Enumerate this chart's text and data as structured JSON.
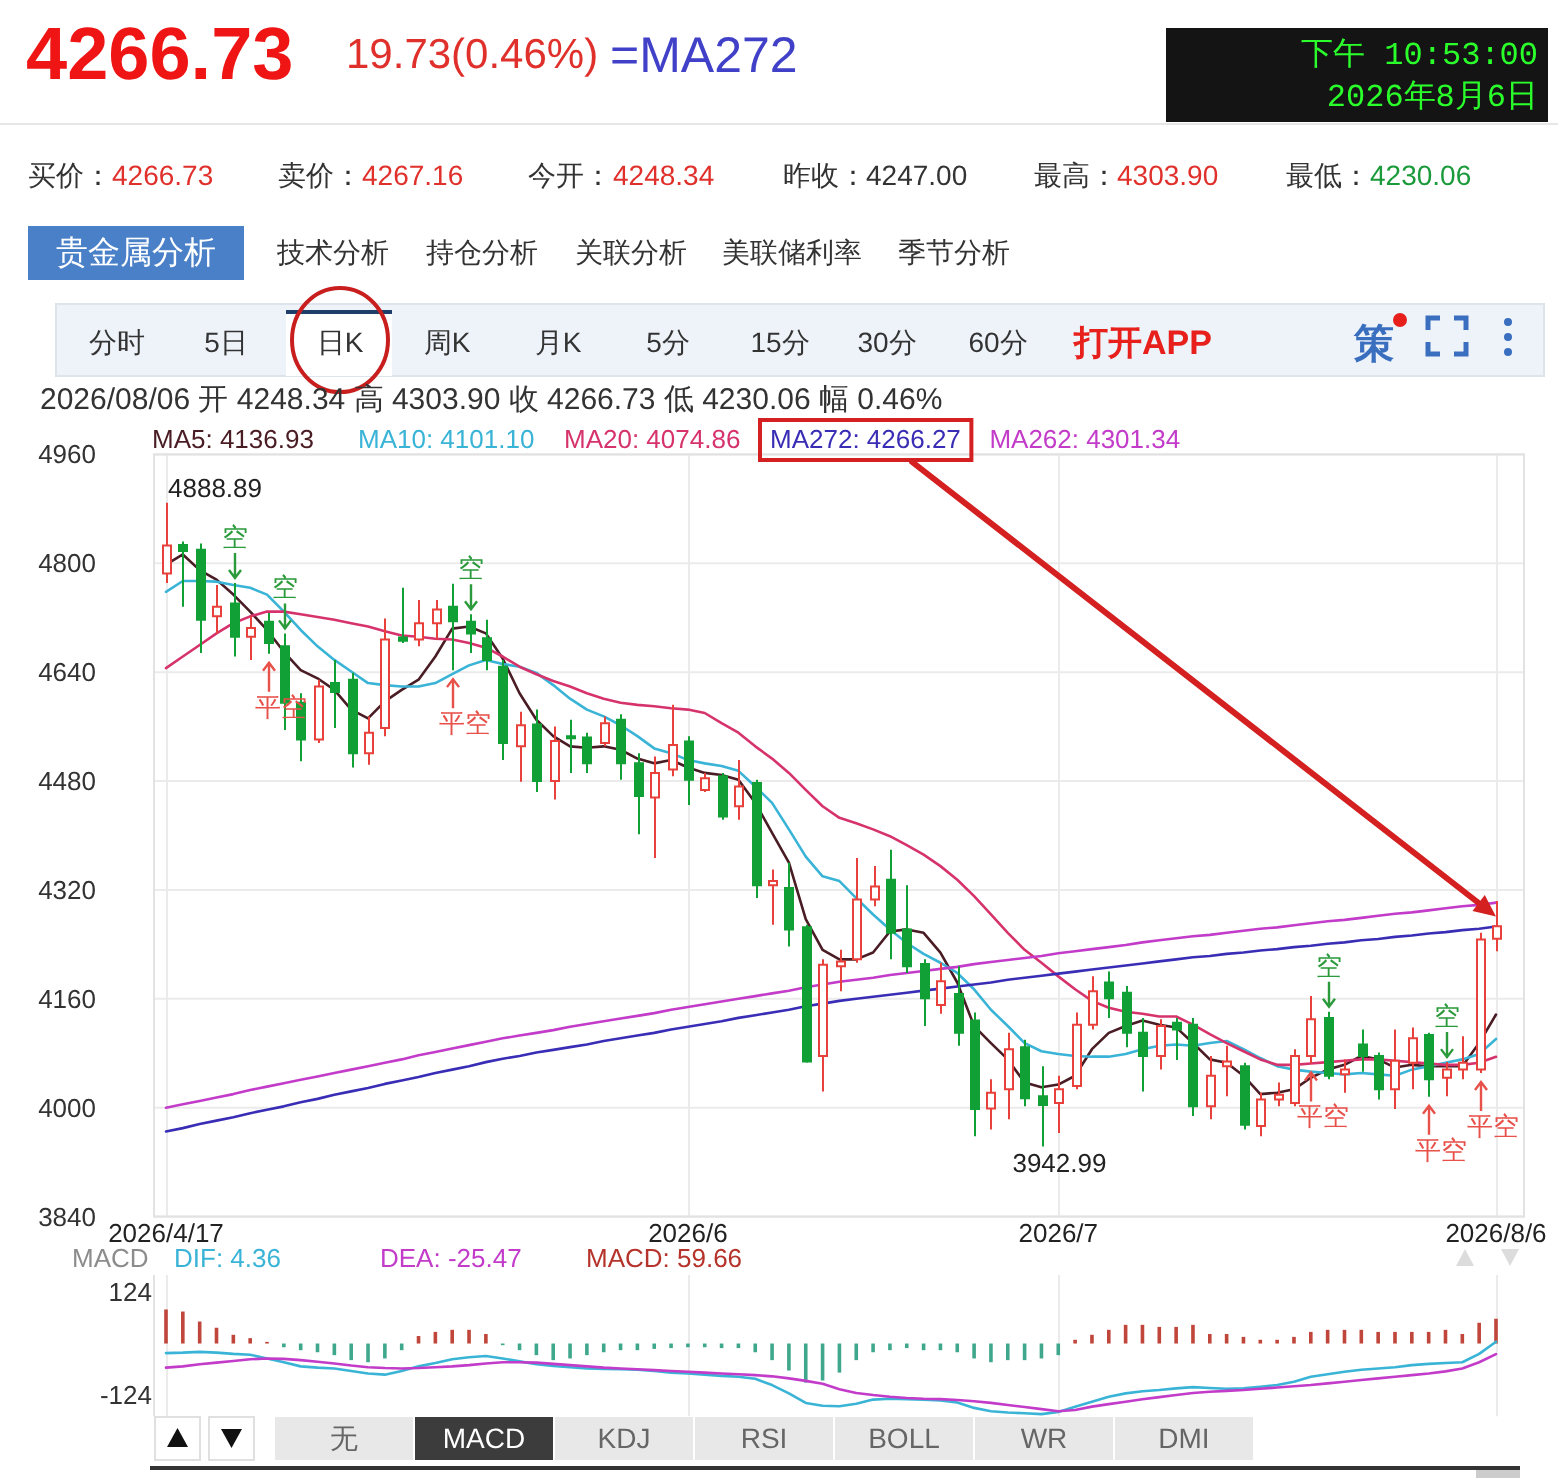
{
  "chart_data": [
    {
      "type": "other",
      "title": "4266.73",
      "annotations": [
        "19.73(0.46%)",
        "=MA272",
        "下午 10:53:00",
        "2026年8月6日",
        "买价：",
        "4266.73",
        "卖价：",
        "4267.16",
        "今开：",
        "4248.34",
        "昨收：",
        "4247.00",
        "最高：",
        "4303.90",
        "最低：",
        "4230.06",
        "贵金属分析",
        "技术分析",
        "持仓分析",
        "关联分析",
        "美联储利率",
        "季节分析",
        "分时",
        "5日",
        "日K",
        "周K",
        "月K",
        "5分",
        "15分",
        "30分",
        "60分",
        "打开APP",
        "策"
      ]
    },
    {
      "type": "candlestick",
      "subtitle": "2026/08/06 开 4248.34 高 4303.90 收 4266.73 低 4230.06 幅 0.46%",
      "categories": [
        "2026/4/17",
        null,
        null,
        null,
        null,
        null,
        null,
        null,
        null,
        null,
        null,
        null,
        null,
        null,
        null,
        null,
        null,
        null,
        null,
        null,
        null,
        null,
        null,
        null,
        null,
        null,
        null,
        null,
        null,
        null,
        null,
        "2026/6",
        null,
        null,
        null,
        null,
        null,
        null,
        null,
        null,
        null,
        null,
        null,
        null,
        null,
        null,
        null,
        null,
        null,
        null,
        null,
        null,
        null,
        "2026/7",
        null,
        null,
        null,
        null,
        null,
        null,
        null,
        null,
        null,
        null,
        null,
        null,
        null,
        null,
        null,
        null,
        null,
        null,
        null,
        null,
        null,
        null,
        null,
        null,
        null,
        "2026/8/6"
      ],
      "ohlc": [
        [
          4785,
          4888.89,
          4771,
          4826
        ],
        [
          4827,
          4832,
          4736,
          4818
        ],
        [
          4820,
          4829,
          4668,
          4717
        ],
        [
          4722,
          4768,
          4697,
          4736
        ],
        [
          4741,
          4771,
          4663,
          4692
        ],
        [
          4692,
          4722,
          4658,
          4705
        ],
        [
          4714,
          4727,
          4667,
          4683
        ],
        [
          4678,
          4697,
          4555,
          4595
        ],
        [
          4595,
          4609,
          4509,
          4541
        ],
        [
          4541,
          4629,
          4536,
          4619
        ],
        [
          4624,
          4658,
          4558,
          4611
        ],
        [
          4629,
          4639,
          4500,
          4521
        ],
        [
          4521,
          4575,
          4504,
          4551
        ],
        [
          4558,
          4719,
          4546,
          4688
        ],
        [
          4691,
          4764,
          4683,
          4686
        ],
        [
          4688,
          4746,
          4678,
          4712
        ],
        [
          4712,
          4746,
          4688,
          4732
        ],
        [
          4736,
          4770,
          4643,
          4715
        ],
        [
          4714,
          4725,
          4668,
          4697
        ],
        [
          4690,
          4717,
          4643,
          4658
        ],
        [
          4648,
          4658,
          4511,
          4536
        ],
        [
          4531,
          4582,
          4479,
          4562
        ],
        [
          4563,
          4585,
          4464,
          4480
        ],
        [
          4480,
          4560,
          4453,
          4539
        ],
        [
          4546,
          4570,
          4492,
          4544
        ],
        [
          4544,
          4551,
          4492,
          4506
        ],
        [
          4536,
          4575,
          4531,
          4565
        ],
        [
          4570,
          4578,
          4482,
          4506
        ],
        [
          4506,
          4521,
          4402,
          4458
        ],
        [
          4456,
          4516,
          4367,
          4492
        ],
        [
          4497,
          4592,
          4487,
          4533
        ],
        [
          4538,
          4546,
          4445,
          4482
        ],
        [
          4467,
          4492,
          4464,
          4484
        ],
        [
          4487,
          4492,
          4423,
          4428
        ],
        [
          4443,
          4511,
          4423,
          4472
        ],
        [
          4477,
          4482,
          4308,
          4327
        ],
        [
          4327,
          4350,
          4269,
          4333
        ],
        [
          4323,
          4360,
          4237,
          4262
        ],
        [
          4265,
          4269,
          4066,
          4068
        ],
        [
          4076,
          4218,
          4024,
          4210
        ],
        [
          4208,
          4232,
          4171,
          4215
        ],
        [
          4218,
          4367,
          4213,
          4306
        ],
        [
          4306,
          4355,
          4296,
          4325
        ],
        [
          4335,
          4379,
          4218,
          4257
        ],
        [
          4262,
          4327,
          4198,
          4208
        ],
        [
          4211,
          4218,
          4120,
          4161
        ],
        [
          4151,
          4213,
          4138,
          4186
        ],
        [
          4167,
          4208,
          4091,
          4110
        ],
        [
          4128,
          4140,
          3958,
          3998
        ],
        [
          3999,
          4042,
          3968,
          4022
        ],
        [
          4027,
          4110,
          3983,
          4086
        ],
        [
          4089,
          4100,
          4002,
          4014
        ],
        [
          4017,
          4061,
          3942.99,
          4004
        ],
        [
          4007,
          4047,
          3963,
          4027
        ],
        [
          4032,
          4140,
          4027,
          4122
        ],
        [
          4122,
          4193,
          4115,
          4171
        ],
        [
          4184,
          4200,
          4132,
          4161
        ],
        [
          4169,
          4179,
          4089,
          4110
        ],
        [
          4110,
          4132,
          4024,
          4076
        ],
        [
          4076,
          4130,
          4056,
          4120
        ],
        [
          4125,
          4132,
          4070,
          4115
        ],
        [
          4122,
          4132,
          3988,
          4002
        ],
        [
          4002,
          4076,
          3983,
          4047
        ],
        [
          4061,
          4091,
          4017,
          4068
        ],
        [
          4061,
          4066,
          3968,
          3975
        ],
        [
          3973,
          4022,
          3958,
          4012
        ],
        [
          4012,
          4037,
          4002,
          4019
        ],
        [
          4007,
          4086,
          4002,
          4076
        ],
        [
          4076,
          4164,
          4065,
          4130
        ],
        [
          4132,
          4141,
          4042,
          4047
        ],
        [
          4049,
          4071,
          4022,
          4056
        ],
        [
          4093,
          4115,
          4053,
          4076
        ],
        [
          4076,
          4081,
          4012,
          4027
        ],
        [
          4027,
          4115,
          3998,
          4069
        ],
        [
          4066,
          4118,
          4027,
          4102
        ],
        [
          4107,
          4110,
          4016,
          4042
        ],
        [
          4044,
          4067,
          4017,
          4056
        ],
        [
          4056,
          4105,
          4042,
          4066
        ],
        [
          4056,
          4257,
          4051,
          4247
        ],
        [
          4248.34,
          4303.9,
          4230.06,
          4266.73
        ]
      ],
      "colors": [
        "#e8413c",
        "#10a035",
        "#10a035",
        "#e8413c",
        "#10a035",
        "#e8413c",
        "#10a035",
        "#10a035",
        "#10a035",
        "#e8413c",
        "#10a035",
        "#10a035",
        "#e8413c",
        "#e8413c",
        "#10a035",
        "#e8413c",
        "#e8413c",
        "#10a035",
        "#10a035",
        "#10a035",
        "#10a035",
        "#e8413c",
        "#10a035",
        "#e8413c",
        "#10a035",
        "#10a035",
        "#e8413c",
        "#10a035",
        "#10a035",
        "#e8413c",
        "#e8413c",
        "#10a035",
        "#e8413c",
        "#10a035",
        "#e8413c",
        "#10a035",
        "#e8413c",
        "#10a035",
        "#10a035",
        "#e8413c",
        "#e8413c",
        "#e8413c",
        "#e8413c",
        "#10a035",
        "#10a035",
        "#10a035",
        "#e8413c",
        "#10a035",
        "#10a035",
        "#e8413c",
        "#e8413c",
        "#10a035",
        "#10a035",
        "#e8413c",
        "#e8413c",
        "#e8413c",
        "#10a035",
        "#10a035",
        "#10a035",
        "#e8413c",
        "#10a035",
        "#10a035",
        "#e8413c",
        "#e8413c",
        "#10a035",
        "#e8413c",
        "#e8413c",
        "#e8413c",
        "#e8413c",
        "#10a035",
        "#e8413c",
        "#10a035",
        "#10a035",
        "#e8413c",
        "#e8413c",
        "#10a035",
        "#e8413c",
        "#e8413c",
        "#e8413c",
        "#e8413c"
      ],
      "series": [
        {
          "name": "MA5: 4136.93",
          "type": "line",
          "color": "#4a1c24",
          "values": [
            4798,
            4813,
            4790,
            4776,
            4754,
            4729,
            4702,
            4670,
            4643,
            4631,
            4614,
            4585,
            4572,
            4597,
            4614,
            4629,
            4663,
            4704,
            4707,
            4697,
            4660,
            4609,
            4570,
            4546,
            4531,
            4529,
            4531,
            4526,
            4513,
            4506,
            4511,
            4500,
            4492,
            4489,
            4482,
            4448,
            4404,
            4360,
            4277,
            4232,
            4218,
            4218,
            4228,
            4259,
            4262,
            4257,
            4228,
            4184,
            4120,
            4095,
            4071,
            4037,
            4030,
            4034,
            4047,
            4086,
            4110,
            4120,
            4128,
            4122,
            4118,
            4095,
            4071,
            4066,
            4047,
            4020,
            4022,
            4027,
            4044,
            4056,
            4063,
            4076,
            4071,
            4059,
            4063,
            4061,
            4061,
            4061,
            4095,
            4136.93
          ]
        },
        {
          "name": "MA10: 4101.10",
          "type": "line",
          "color": "#3ab4d6",
          "values": [
            4758,
            4774,
            4774,
            4773,
            4768,
            4764,
            4754,
            4729,
            4702,
            4678,
            4658,
            4641,
            4624,
            4621,
            4619,
            4619,
            4624,
            4637,
            4650,
            4658,
            4652,
            4648,
            4639,
            4621,
            4601,
            4585,
            4575,
            4562,
            4546,
            4528,
            4521,
            4511,
            4506,
            4502,
            4495,
            4472,
            4448,
            4409,
            4369,
            4340,
            4333,
            4308,
            4284,
            4262,
            4242,
            4226,
            4213,
            4198,
            4174,
            4144,
            4120,
            4095,
            4083,
            4079,
            4076,
            4075,
            4075,
            4079,
            4086,
            4091,
            4093,
            4091,
            4095,
            4098,
            4086,
            4073,
            4061,
            4056,
            4053,
            4051,
            4049,
            4051,
            4049,
            4047,
            4056,
            4061,
            4066,
            4071,
            4079,
            4101.1
          ]
        },
        {
          "name": "MA20: 4074.86",
          "type": "line",
          "color": "#d6336c",
          "values": [
            4646,
            4663,
            4680,
            4697,
            4712,
            4722,
            4729,
            4729,
            4725,
            4721,
            4717,
            4712,
            4707,
            4700,
            4694,
            4692,
            4689,
            4688,
            4683,
            4676,
            4663,
            4648,
            4637,
            4627,
            4619,
            4609,
            4601,
            4595,
            4592,
            4590,
            4587,
            4585,
            4580,
            4565,
            4551,
            4531,
            4513,
            4492,
            4467,
            4443,
            4426,
            4418,
            4409,
            4399,
            4386,
            4372,
            4355,
            4335,
            4311,
            4284,
            4257,
            4232,
            4213,
            4193,
            4174,
            4157,
            4147,
            4141,
            4138,
            4134,
            4134,
            4122,
            4108,
            4095,
            4083,
            4071,
            4063,
            4063,
            4065,
            4067,
            4069,
            4071,
            4071,
            4069,
            4067,
            4065,
            4063,
            4063,
            4066,
            4074.86
          ]
        },
        {
          "name": "MA272: 4266.27",
          "type": "line",
          "color": "#3a2db5",
          "values": [
            3965,
            3970,
            3976,
            3981,
            3986,
            3992,
            3997,
            4002,
            4008,
            4013,
            4019,
            4024,
            4029,
            4035,
            4040,
            4045,
            4051,
            4056,
            4061,
            4067,
            4072,
            4076,
            4081,
            4085,
            4089,
            4093,
            4098,
            4102,
            4106,
            4110,
            4115,
            4119,
            4123,
            4127,
            4132,
            4136,
            4140,
            4144,
            4149,
            4153,
            4157,
            4160,
            4163,
            4166,
            4169,
            4172,
            4175,
            4178,
            4181,
            4184,
            4188,
            4191,
            4194,
            4197,
            4200,
            4203,
            4206,
            4209,
            4212,
            4215,
            4218,
            4221,
            4223,
            4226,
            4228,
            4231,
            4233,
            4236,
            4238,
            4241,
            4243,
            4246,
            4248,
            4251,
            4253,
            4256,
            4258,
            4261,
            4263,
            4266.27
          ]
        },
        {
          "name": "MA262: 4301.34",
          "type": "line",
          "color": "#c23bc9",
          "values": [
            4000,
            4005,
            4010,
            4015,
            4020,
            4026,
            4031,
            4036,
            4041,
            4046,
            4051,
            4056,
            4061,
            4066,
            4071,
            4077,
            4082,
            4087,
            4092,
            4097,
            4102,
            4106,
            4110,
            4114,
            4119,
            4123,
            4127,
            4131,
            4135,
            4139,
            4144,
            4148,
            4152,
            4156,
            4160,
            4164,
            4168,
            4172,
            4177,
            4181,
            4185,
            4188,
            4191,
            4195,
            4198,
            4201,
            4204,
            4207,
            4211,
            4214,
            4217,
            4220,
            4223,
            4227,
            4230,
            4233,
            4236,
            4239,
            4243,
            4246,
            4249,
            4252,
            4254,
            4257,
            4260,
            4263,
            4265,
            4268,
            4271,
            4274,
            4276,
            4279,
            4282,
            4285,
            4287,
            4290,
            4293,
            4296,
            4298,
            4301.34
          ]
        }
      ],
      "ylim": [
        3840,
        4960
      ],
      "yticks": [
        3840,
        4000,
        4160,
        4320,
        4480,
        4640,
        4800,
        4960
      ],
      "grid": true,
      "legend": "top left",
      "annotations": [
        "4888.89",
        {
          "text": "空",
          "y": 4771
        },
        {
          "text": "平空",
          "y": 4667
        },
        {
          "text": "空",
          "y": 4697
        },
        {
          "text": "平空",
          "y": 4643
        },
        {
          "text": "空",
          "y": 4725
        },
        "3942.99",
        {
          "text": "平空",
          "y": 4065
        },
        {
          "text": "空",
          "y": 4141
        },
        {
          "text": "平空",
          "y": 4016
        },
        {
          "text": "空",
          "y": 4067
        },
        {
          "text": "平空",
          "y": 4051
        }
      ]
    },
    {
      "type": "bar",
      "title": "MACD",
      "categories": [
        "2026/4/17",
        null,
        null,
        null,
        null,
        null,
        null,
        null,
        null,
        null,
        null,
        null,
        null,
        null,
        null,
        null,
        null,
        null,
        null,
        null,
        null,
        null,
        null,
        null,
        null,
        null,
        null,
        null,
        null,
        null,
        null,
        "2026/6",
        null,
        null,
        null,
        null,
        null,
        null,
        null,
        null,
        null,
        null,
        null,
        null,
        null,
        null,
        null,
        null,
        null,
        null,
        null,
        null,
        null,
        "2026/7",
        null,
        null,
        null,
        null,
        null,
        null,
        null,
        null,
        null,
        null,
        null,
        null,
        null,
        null,
        null,
        null,
        null,
        null,
        null,
        null,
        null,
        null,
        null,
        null,
        null,
        "2026/8/6"
      ],
      "series": [
        {
          "name": "DIF: 4.36",
          "type": "line",
          "color": "#3ab4d6",
          "values": [
            -23,
            -22,
            -20,
            -22,
            -25,
            -27,
            -36,
            -45,
            -55,
            -58,
            -60,
            -66,
            -72,
            -75,
            -66,
            -55,
            -47,
            -38,
            -33,
            -30,
            -36,
            -43,
            -50,
            -54,
            -57,
            -60,
            -61,
            -62,
            -63,
            -66,
            -70,
            -72,
            -75,
            -78,
            -80,
            -85,
            -100,
            -120,
            -143,
            -150,
            -151,
            -145,
            -135,
            -133,
            -134,
            -135,
            -137,
            -142,
            -155,
            -163,
            -166,
            -168,
            -170,
            -165,
            -152,
            -140,
            -128,
            -120,
            -115,
            -112,
            -108,
            -105,
            -107,
            -109,
            -108,
            -104,
            -100,
            -92,
            -80,
            -74,
            -68,
            -63,
            -60,
            -57,
            -52,
            -49,
            -47,
            -45,
            -25,
            4.36
          ]
        },
        {
          "name": "DEA: -25.47",
          "type": "line",
          "color": "#c23bc9",
          "values": [
            -58,
            -55,
            -50,
            -46,
            -42,
            -38,
            -36,
            -37,
            -40,
            -44,
            -48,
            -53,
            -57,
            -59,
            -60,
            -59,
            -57,
            -55,
            -52,
            -48,
            -45,
            -45,
            -46,
            -49,
            -52,
            -55,
            -58,
            -60,
            -62,
            -64,
            -66,
            -68,
            -70,
            -72,
            -74,
            -76,
            -79,
            -84,
            -90,
            -97,
            -110,
            -119,
            -124,
            -128,
            -131,
            -133,
            -134,
            -136,
            -139,
            -143,
            -148,
            -153,
            -158,
            -163,
            -160,
            -152,
            -146,
            -140,
            -134,
            -129,
            -124,
            -119,
            -116,
            -114,
            -112,
            -109,
            -106,
            -103,
            -100,
            -96,
            -92,
            -88,
            -84,
            -80,
            -76,
            -72,
            -67,
            -60,
            -45,
            -25.47
          ]
        },
        {
          "name": "MACD: 59.66",
          "color": "#b5332b",
          "colors": [
            "#c0453a",
            "#c0453a",
            "#c0453a",
            "#c0453a",
            "#c0453a",
            "#c0453a",
            "#c0453a",
            "#3fa88c",
            "#3fa88c",
            "#3fa88c",
            "#3fa88c",
            "#3fa88c",
            "#3fa88c",
            "#3fa88c",
            "#3fa88c",
            "#c0453a",
            "#c0453a",
            "#c0453a",
            "#c0453a",
            "#c0453a",
            "#3fa88c",
            "#3fa88c",
            "#3fa88c",
            "#3fa88c",
            "#3fa88c",
            "#3fa88c",
            "#3fa88c",
            "#3fa88c",
            "#3fa88c",
            "#3fa88c",
            "#3fa88c",
            "#3fa88c",
            "#3fa88c",
            "#3fa88c",
            "#3fa88c",
            "#3fa88c",
            "#3fa88c",
            "#3fa88c",
            "#3fa88c",
            "#3fa88c",
            "#3fa88c",
            "#3fa88c",
            "#3fa88c",
            "#3fa88c",
            "#3fa88c",
            "#3fa88c",
            "#3fa88c",
            "#3fa88c",
            "#3fa88c",
            "#3fa88c",
            "#3fa88c",
            "#3fa88c",
            "#3fa88c",
            "#3fa88c",
            "#c0453a",
            "#c0453a",
            "#c0453a",
            "#c0453a",
            "#c0453a",
            "#c0453a",
            "#c0453a",
            "#c0453a",
            "#c0453a",
            "#c0453a",
            "#c0453a",
            "#c0453a",
            "#c0453a",
            "#c0453a",
            "#c0453a",
            "#c0453a",
            "#c0453a",
            "#c0453a",
            "#c0453a",
            "#c0453a",
            "#c0453a",
            "#c0453a",
            "#c0453a",
            "#c0453a",
            "#c0453a",
            "#c0453a"
          ],
          "values": [
            82,
            77,
            53,
            38,
            21,
            13,
            4,
            -9,
            -16,
            -21,
            -28,
            -40,
            -45,
            -36,
            -16,
            18,
            28,
            33,
            33,
            23,
            -4,
            -16,
            -28,
            -40,
            -36,
            -28,
            -21,
            -16,
            -16,
            -13,
            -11,
            -9,
            -9,
            -11,
            -11,
            -21,
            -40,
            -65,
            -94,
            -89,
            -70,
            -40,
            -21,
            -16,
            -11,
            -16,
            -16,
            -21,
            -36,
            -45,
            -40,
            -40,
            -36,
            -28,
            9,
            21,
            33,
            45,
            45,
            40,
            40,
            45,
            23,
            23,
            16,
            9,
            9,
            16,
            28,
            33,
            33,
            33,
            28,
            28,
            28,
            28,
            33,
            23,
            50,
            59.66
          ]
        }
      ],
      "ylim": [
        -175,
        165
      ],
      "yticks": [
        -124,
        124
      ],
      "grid": "x",
      "legend": "top left",
      "tick_labels": "y"
    },
    {
      "type": "other",
      "annotations": [
        "无",
        "MACD",
        "KDJ",
        "RSI",
        "BOLL",
        "WR",
        "DMI"
      ]
    }
  ]
}
